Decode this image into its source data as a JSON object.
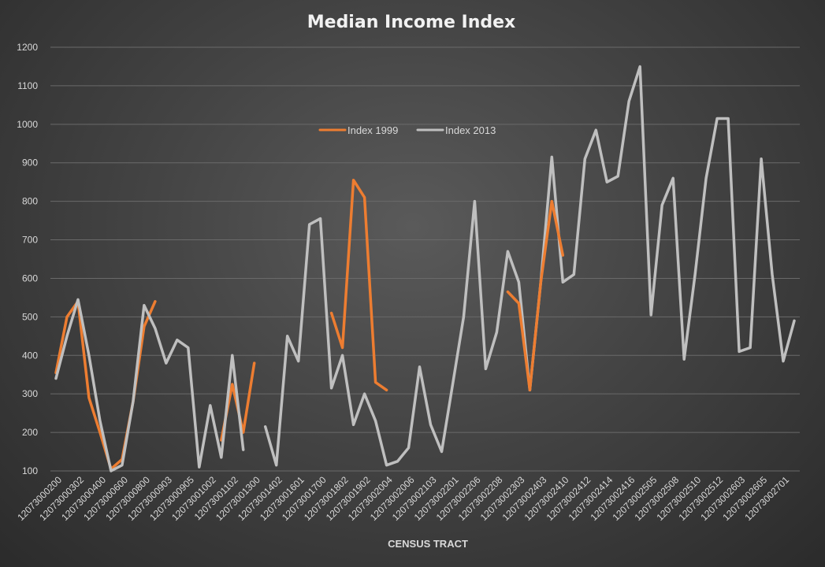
{
  "chart_data": {
    "type": "line",
    "title": "Median Income Index",
    "xlabel": "CENSUS TRACT",
    "ylabel": "",
    "ylim": [
      100,
      1200
    ],
    "yticks": [
      100,
      200,
      300,
      400,
      500,
      600,
      700,
      800,
      900,
      1000,
      1100,
      1200
    ],
    "grid": true,
    "legend_position": "top-center",
    "tick_labels": [
      "12073000200",
      "12073000302",
      "12073000400",
      "12073000600",
      "12073000800",
      "12073000903",
      "12073000905",
      "12073001002",
      "12073001102",
      "12073001300",
      "12073001402",
      "12073001601",
      "12073001700",
      "12073001802",
      "12073001902",
      "12073002004",
      "12073002006",
      "12073002103",
      "12073002201",
      "12073002206",
      "12073002208",
      "12073002303",
      "12073002403",
      "12073002410",
      "12073002412",
      "12073002414",
      "12073002416",
      "12073002505",
      "12073002508",
      "12073002510",
      "12073002512",
      "12073002603",
      "12073002605",
      "12073002701"
    ],
    "point_count": 68,
    "series": [
      {
        "name": "Index 1999",
        "color": "#ed7d31",
        "values": [
          355,
          500,
          540,
          290,
          200,
          105,
          130,
          280,
          475,
          540,
          null,
          null,
          null,
          null,
          null,
          180,
          325,
          200,
          380,
          null,
          null,
          null,
          null,
          null,
          null,
          510,
          420,
          855,
          810,
          330,
          310,
          null,
          null,
          null,
          null,
          null,
          null,
          null,
          null,
          null,
          null,
          null,
          null,
          null,
          null,
          null,
          null,
          null,
          null,
          null,
          null,
          null,
          null,
          null,
          null,
          null,
          null,
          null,
          null,
          null,
          null,
          null,
          null,
          null,
          null,
          null,
          null,
          null
        ]
      },
      {
        "name": "Index 2013",
        "color": "#bfbfbf",
        "values": [
          340,
          450,
          545,
          400,
          230,
          100,
          115,
          280,
          530,
          470,
          380,
          440,
          420,
          110,
          270,
          135,
          400,
          155,
          null,
          215,
          115,
          450,
          385,
          740,
          755,
          315,
          400,
          220,
          300,
          230,
          115,
          125,
          160,
          370,
          220,
          150,
          325,
          500,
          800,
          365,
          460,
          670,
          590,
          310,
          590,
          915,
          590,
          610,
          910,
          985,
          850,
          865,
          1060,
          1150,
          505,
          790,
          860,
          390,
          610,
          860,
          1015,
          1015,
          410,
          420,
          910,
          610,
          385,
          490
        ]
      },
      {
        "name": "",
        "color": "#ed7d31",
        "values": [
          null,
          null,
          null,
          null,
          null,
          null,
          null,
          null,
          null,
          null,
          null,
          null,
          null,
          null,
          null,
          null,
          null,
          null,
          null,
          null,
          null,
          null,
          null,
          null,
          null,
          null,
          null,
          null,
          null,
          null,
          null,
          null,
          null,
          null,
          null,
          null,
          null,
          null,
          null,
          null,
          null,
          565,
          535,
          310,
          590,
          800,
          660,
          null,
          null,
          null,
          null,
          null,
          null,
          null,
          null,
          null,
          null,
          null,
          null,
          null,
          null,
          null,
          null,
          null,
          null,
          null,
          null,
          null
        ]
      }
    ]
  }
}
